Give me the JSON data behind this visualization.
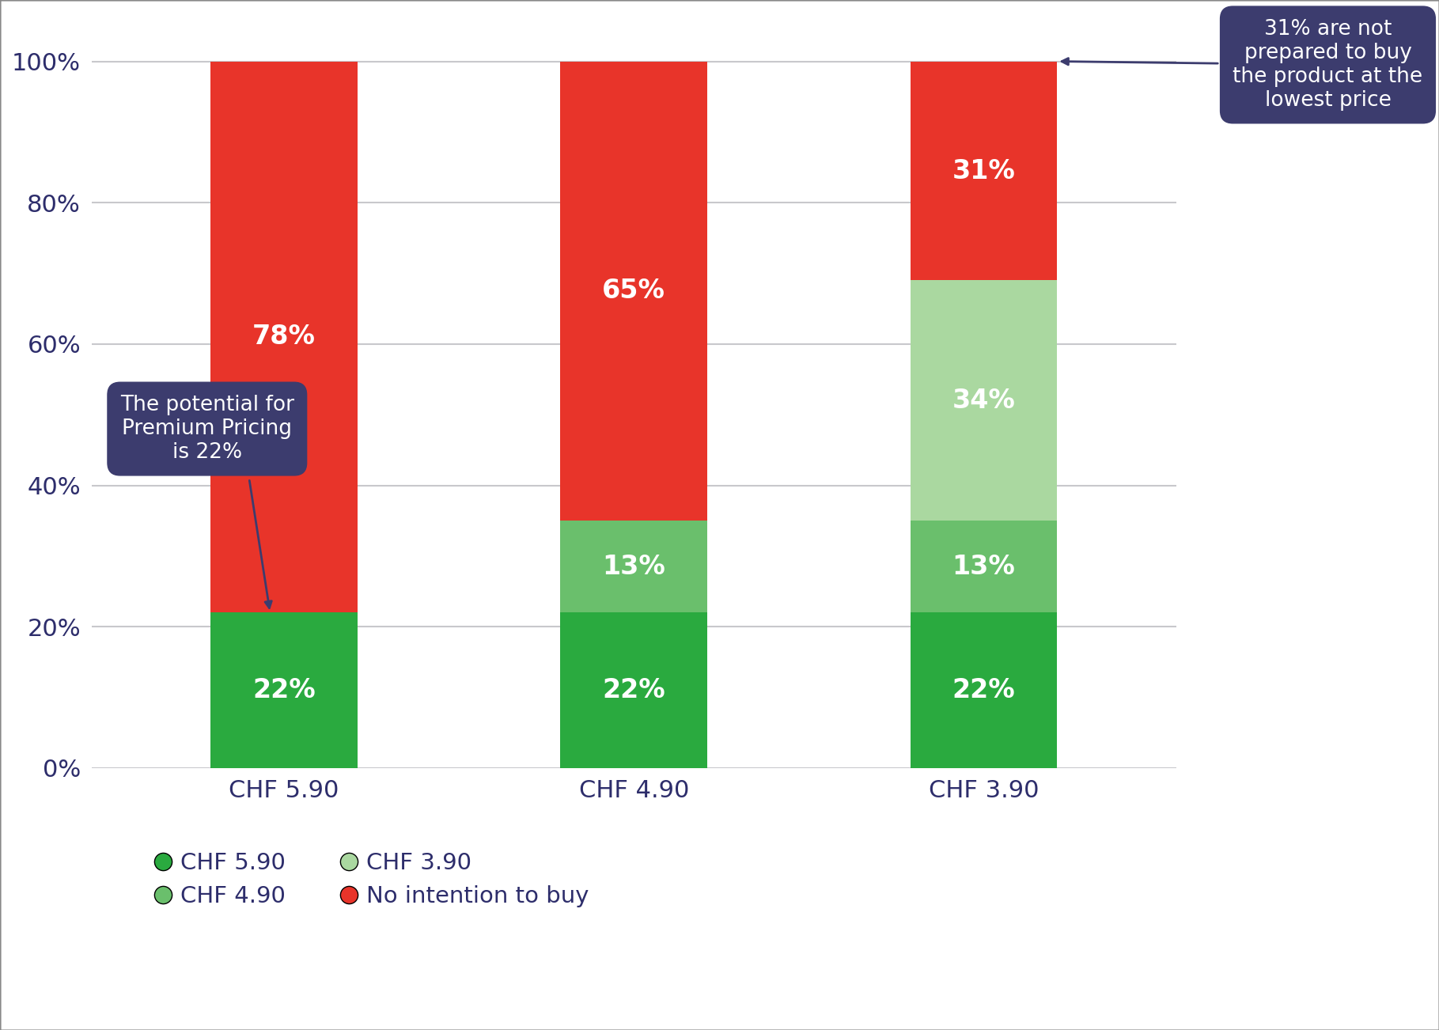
{
  "categories": [
    "CHF 5.90",
    "CHF 4.90",
    "CHF 3.90"
  ],
  "segments": {
    "green_dark": [
      22,
      22,
      22
    ],
    "green_mid": [
      0,
      13,
      13
    ],
    "green_light": [
      0,
      0,
      34
    ],
    "red": [
      78,
      65,
      31
    ]
  },
  "segment_labels": {
    "green_dark": [
      "22%",
      "22%",
      "22%"
    ],
    "green_mid": [
      "",
      "13%",
      "13%"
    ],
    "green_light": [
      "",
      "",
      "34%"
    ],
    "red": [
      "78%",
      "65%",
      "31%"
    ]
  },
  "colors": {
    "green_dark": "#2aaa3f",
    "green_mid": "#6abf6c",
    "green_light": "#aad8a0",
    "red": "#e8342a",
    "background": "#ffffff",
    "grid": "#c8c8cc",
    "text_dark": "#2d2d6b",
    "callout_bg": "#3c3c6e"
  },
  "yticks": [
    0,
    20,
    40,
    60,
    80,
    100
  ],
  "ytick_labels": [
    "0%",
    "20%",
    "40%",
    "60%",
    "80%",
    "100%"
  ],
  "legend_items": [
    {
      "label": "CHF 5.90",
      "color": "#2aaa3f"
    },
    {
      "label": "CHF 4.90",
      "color": "#6abf6c"
    },
    {
      "label": "CHF 3.90",
      "color": "#aad8a0"
    },
    {
      "label": "No intention to buy",
      "color": "#e8342a"
    }
  ],
  "callout1_text": "The potential for\nPremium Pricing\nis 22%",
  "callout2_text": "31% are not\nprepared to buy\nthe product at the\nlowest price",
  "bar_width": 0.42,
  "label_fontsize": 24,
  "tick_fontsize": 22,
  "legend_fontsize": 21,
  "callout_fontsize": 19
}
